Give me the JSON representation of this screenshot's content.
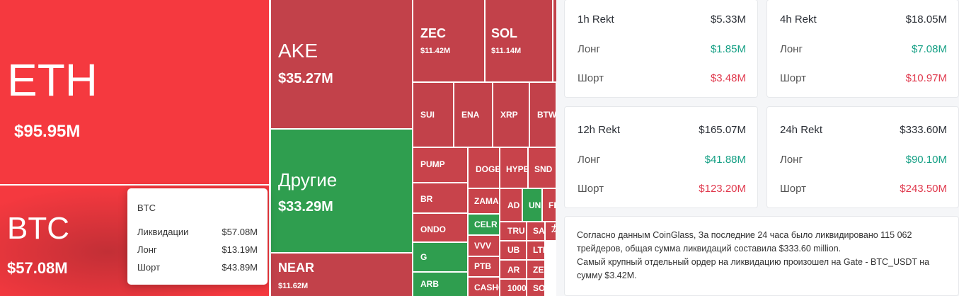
{
  "treemap": {
    "tiles": [
      {
        "label": "ETH",
        "value": "$95.95M"
      },
      {
        "label": "BTC",
        "value": "$57.08M"
      },
      {
        "label": "AKE",
        "value": "$35.27M"
      },
      {
        "label": "Другие",
        "value": "$33.29M"
      },
      {
        "label": "NEAR",
        "value": "$11.62M"
      },
      {
        "label": "ZEC",
        "value": "$11.42M"
      },
      {
        "label": "SOL",
        "value": "$11.14M"
      },
      {
        "label": "SUI"
      },
      {
        "label": "ENA"
      },
      {
        "label": "XRP"
      },
      {
        "label": "BTW"
      },
      {
        "label": "PUMP"
      },
      {
        "label": "BR"
      },
      {
        "label": "ONDO"
      },
      {
        "label": "G"
      },
      {
        "label": "ARB"
      },
      {
        "label": "DOGE"
      },
      {
        "label": "HYPE"
      },
      {
        "label": "SND"
      },
      {
        "label": "ZAMA"
      },
      {
        "label": "CELR"
      },
      {
        "label": "VVV"
      },
      {
        "label": "PTB"
      },
      {
        "label": "CASHC"
      },
      {
        "label": "AD"
      },
      {
        "label": "UN"
      },
      {
        "label": "FE"
      },
      {
        "label": "TRU"
      },
      {
        "label": "SA"
      },
      {
        "label": "龙"
      },
      {
        "label": "UB"
      },
      {
        "label": "LTI"
      },
      {
        "label": "AR"
      },
      {
        "label": "ZET"
      },
      {
        "label": "1000"
      },
      {
        "label": "SO"
      }
    ]
  },
  "tooltip": {
    "title": "BTC",
    "rows": [
      {
        "label": "Ликвидации",
        "value": "$57.08M"
      },
      {
        "label": "Лонг",
        "value": "$13.19M"
      },
      {
        "label": "Шорт",
        "value": "$43.89M"
      }
    ]
  },
  "cards": [
    {
      "title": "1h Rekt",
      "total": "$5.33M",
      "rows": [
        {
          "label": "Лонг",
          "value": "$1.85M"
        },
        {
          "label": "Шорт",
          "value": "$3.48M"
        }
      ]
    },
    {
      "title": "4h Rekt",
      "total": "$18.05M",
      "rows": [
        {
          "label": "Лонг",
          "value": "$7.08M"
        },
        {
          "label": "Шорт",
          "value": "$10.97M"
        }
      ]
    },
    {
      "title": "12h Rekt",
      "total": "$165.07M",
      "rows": [
        {
          "label": "Лонг",
          "value": "$41.88M"
        },
        {
          "label": "Шорт",
          "value": "$123.20M"
        }
      ]
    },
    {
      "title": "24h Rekt",
      "total": "$333.60M",
      "rows": [
        {
          "label": "Лонг",
          "value": "$90.10M"
        },
        {
          "label": "Шорт",
          "value": "$243.50M"
        }
      ]
    }
  ],
  "summary": [
    "Согласно данным CoinGlass, За последние 24 часа было ликвидировано 115 062 трейдеров, общая сумма ликвидаций составила $333.60 million.",
    "Самый крупный отдельный ордер на ликвидацию произошел на Gate - BTC_USDT на сумму $3.42M."
  ]
}
